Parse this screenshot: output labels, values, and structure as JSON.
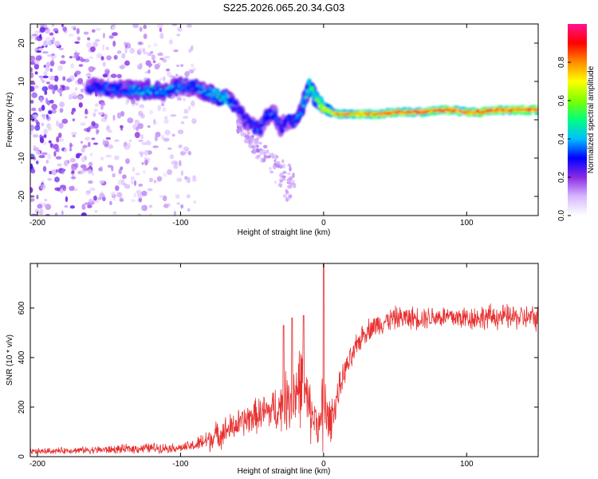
{
  "title": "S225.2026.065.20.34.G03",
  "chart_data": [
    {
      "type": "heatmap",
      "xlabel": "Height of straight line (km)",
      "ylabel": "Frequency (Hz)",
      "xlim": [
        -205,
        150
      ],
      "ylim": [
        -25,
        25
      ],
      "xticks": [
        -200,
        -100,
        0,
        100
      ],
      "yticks": [
        -20,
        -10,
        0,
        10,
        20
      ],
      "colorbar": {
        "label": "Normalized spectral amplitude",
        "range": [
          0,
          1
        ],
        "ticks": [
          "0.0",
          "0.2",
          "0.4",
          "0.6",
          "0.8"
        ],
        "colors": [
          "#ffffff",
          "#d6b8ff",
          "#8a2be2",
          "#0000ff",
          "#00bfff",
          "#00ff7f",
          "#7fff00",
          "#ffff00",
          "#ff8c00",
          "#ff0000",
          "#ff1493"
        ]
      },
      "ridge": {
        "x": [
          -165,
          -150,
          -140,
          -130,
          -120,
          -110,
          -100,
          -90,
          -80,
          -70,
          -60,
          -55,
          -50,
          -45,
          -40,
          -35,
          -30,
          -25,
          -20,
          -15,
          -10,
          -5,
          0,
          5,
          10,
          20,
          30,
          40,
          50,
          60,
          70,
          80,
          90,
          100,
          110,
          120,
          130,
          140,
          150
        ],
        "freq": [
          8.5,
          8,
          8,
          7.5,
          8,
          7.5,
          9,
          8.5,
          7,
          6,
          3,
          0,
          -1,
          -3,
          1,
          2,
          -2,
          0,
          0,
          3,
          9,
          5,
          3,
          2,
          1.5,
          1.5,
          1.5,
          1.5,
          2,
          2,
          2,
          2.5,
          2.5,
          2,
          2,
          2.5,
          2.5,
          2.5,
          2.5
        ],
        "amplitude": [
          0.3,
          0.35,
          0.35,
          0.4,
          0.4,
          0.4,
          0.35,
          0.35,
          0.4,
          0.45,
          0.3,
          0.3,
          0.3,
          0.35,
          0.3,
          0.35,
          0.3,
          0.3,
          0.35,
          0.4,
          0.5,
          0.55,
          0.7,
          0.65,
          0.8,
          0.75,
          0.8,
          0.85,
          0.85,
          0.85,
          0.85,
          0.85,
          0.85,
          0.85,
          0.85,
          0.85,
          0.85,
          0.85,
          0.9
        ]
      },
      "noise": {
        "x_range": [
          -205,
          -90
        ],
        "freq_range": [
          -25,
          25
        ],
        "amplitude_range": [
          0.05,
          0.2
        ]
      }
    },
    {
      "type": "line",
      "xlabel": "Height of straight line (km)",
      "ylabel": "SNR (10 * v/v)",
      "xlim": [
        -205,
        150
      ],
      "ylim": [
        0,
        780
      ],
      "xticks": [
        -200,
        -100,
        0,
        100
      ],
      "yticks": [
        0,
        200,
        400,
        600
      ],
      "color": "#e83030",
      "envelope": {
        "x": [
          -205,
          -180,
          -150,
          -120,
          -100,
          -90,
          -80,
          -70,
          -60,
          -50,
          -40,
          -30,
          -20,
          -15,
          -10,
          -5,
          -2,
          0,
          2,
          5,
          10,
          15,
          20,
          25,
          30,
          40,
          50,
          60,
          80,
          100,
          120,
          150
        ],
        "mean": [
          20,
          25,
          28,
          35,
          35,
          45,
          70,
          100,
          130,
          160,
          180,
          200,
          260,
          300,
          180,
          150,
          120,
          200,
          150,
          150,
          250,
          350,
          400,
          470,
          510,
          540,
          560,
          560,
          565,
          560,
          565,
          560
        ],
        "spread": [
          15,
          15,
          20,
          25,
          20,
          30,
          60,
          70,
          70,
          80,
          90,
          120,
          180,
          200,
          150,
          100,
          80,
          500,
          120,
          100,
          80,
          60,
          60,
          60,
          55,
          55,
          55,
          55,
          55,
          60,
          60,
          60
        ]
      },
      "spikes": [
        {
          "x": -28,
          "y": 530
        },
        {
          "x": -22,
          "y": 560
        },
        {
          "x": -14,
          "y": 570
        },
        {
          "x": 0,
          "y": 780
        }
      ]
    }
  ]
}
